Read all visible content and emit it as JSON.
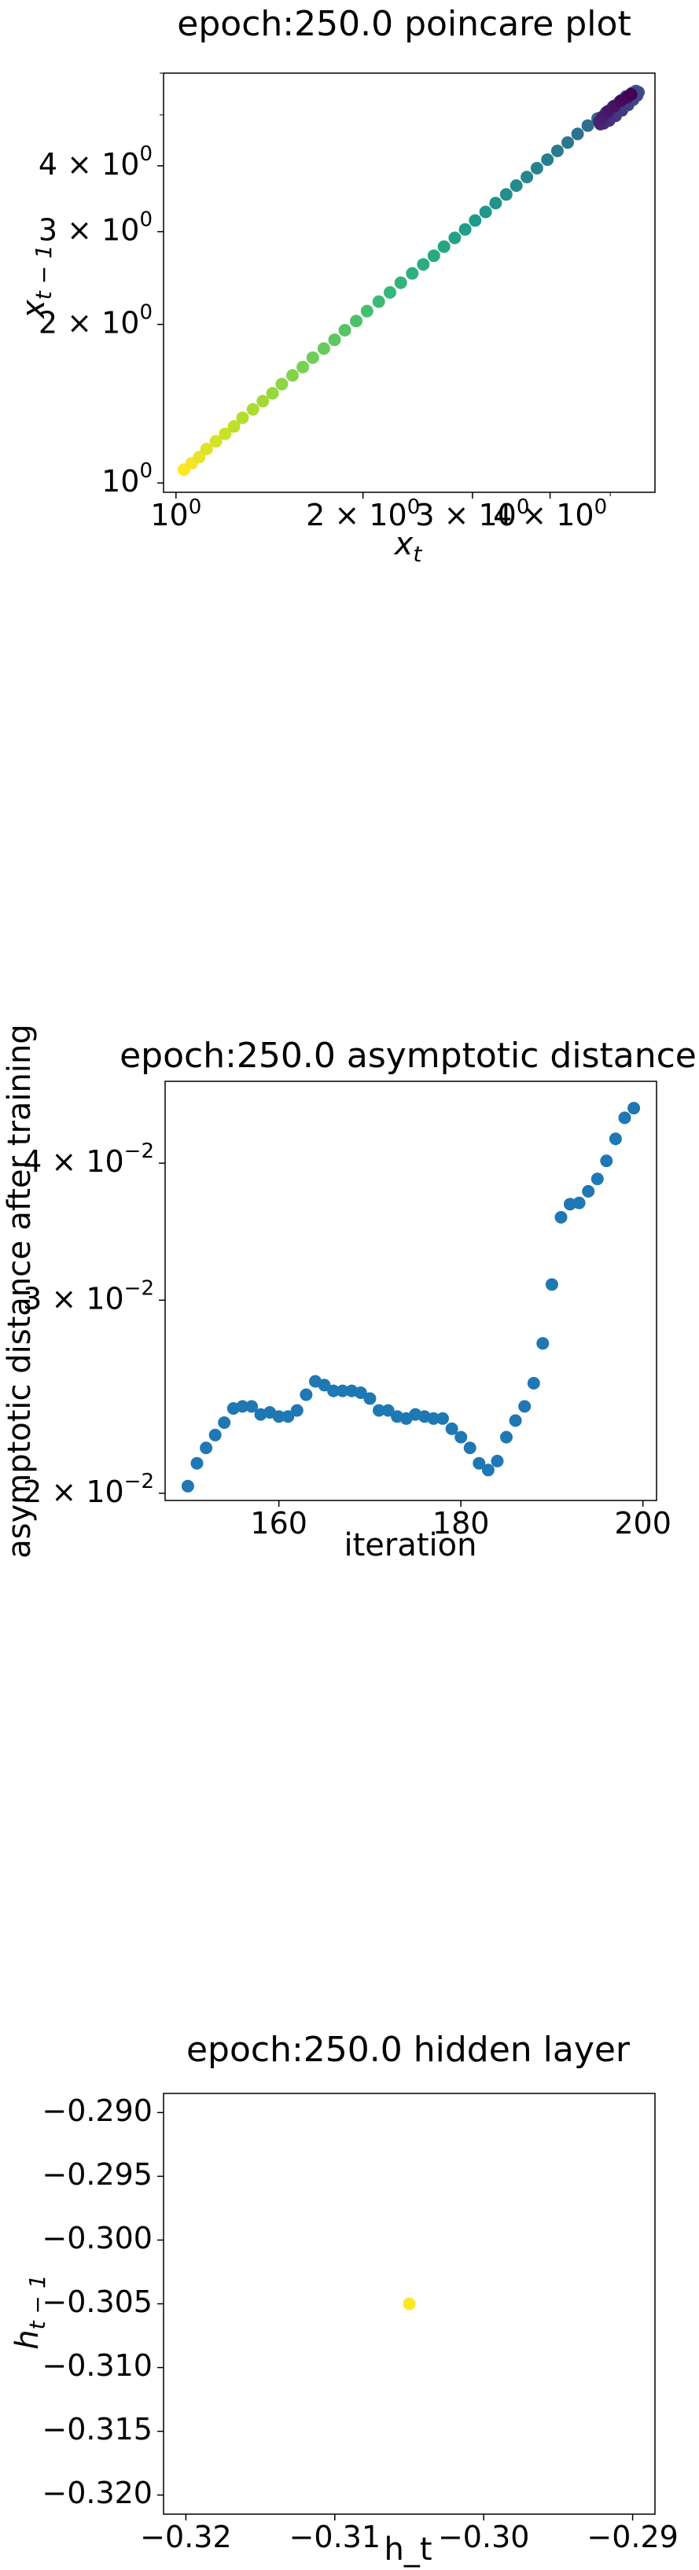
{
  "chart_data": [
    {
      "type": "scatter",
      "title": "epoch:250.0 poincare plot",
      "xlabel_main": "x",
      "xlabel_sub": "t",
      "ylabel_main": "x",
      "ylabel_sub": "t − 1",
      "xscale": "log",
      "yscale": "log",
      "xlim": [
        0.955,
        5.9
      ],
      "ylim": [
        0.96,
        6.0
      ],
      "grid": false,
      "colormap": "viridis",
      "color_start": "#fde725",
      "color_end": "#440154",
      "xticks": [
        {
          "value": 1,
          "base": "10",
          "exp": "0"
        },
        {
          "value": 2,
          "base": "2 × 10",
          "exp": "0"
        },
        {
          "value": 3,
          "base": "3 × 10",
          "exp": "0"
        },
        {
          "value": 4,
          "base": "4 × 10",
          "exp": "0"
        }
      ],
      "yticks": [
        {
          "value": 1,
          "base": "10",
          "exp": "0"
        },
        {
          "value": 2,
          "base": "2 × 10",
          "exp": "0"
        },
        {
          "value": 3,
          "base": "3 × 10",
          "exp": "0"
        },
        {
          "value": 4,
          "base": "4 × 10",
          "exp": "0"
        }
      ],
      "points": [
        [
          1.03,
          1.06
        ],
        [
          1.06,
          1.09
        ],
        [
          1.09,
          1.12
        ],
        [
          1.12,
          1.16
        ],
        [
          1.16,
          1.2
        ],
        [
          1.2,
          1.24
        ],
        [
          1.24,
          1.28
        ],
        [
          1.28,
          1.33
        ],
        [
          1.33,
          1.38
        ],
        [
          1.38,
          1.43
        ],
        [
          1.43,
          1.48
        ],
        [
          1.48,
          1.54
        ],
        [
          1.54,
          1.6
        ],
        [
          1.6,
          1.66
        ],
        [
          1.66,
          1.73
        ],
        [
          1.73,
          1.8
        ],
        [
          1.8,
          1.87
        ],
        [
          1.87,
          1.95
        ],
        [
          1.95,
          2.03
        ],
        [
          2.03,
          2.12
        ],
        [
          2.12,
          2.21
        ],
        [
          2.21,
          2.3
        ],
        [
          2.3,
          2.4
        ],
        [
          2.4,
          2.5
        ],
        [
          2.5,
          2.6
        ],
        [
          2.6,
          2.7
        ],
        [
          2.7,
          2.81
        ],
        [
          2.81,
          2.92
        ],
        [
          2.92,
          3.03
        ],
        [
          3.03,
          3.15
        ],
        [
          3.15,
          3.27
        ],
        [
          3.27,
          3.4
        ],
        [
          3.4,
          3.53
        ],
        [
          3.53,
          3.67
        ],
        [
          3.67,
          3.81
        ],
        [
          3.81,
          3.96
        ],
        [
          3.96,
          4.11
        ],
        [
          4.11,
          4.27
        ],
        [
          4.27,
          4.43
        ],
        [
          4.43,
          4.6
        ],
        [
          4.6,
          4.77
        ],
        [
          4.77,
          4.92
        ],
        [
          4.92,
          5.05
        ],
        [
          5.05,
          5.18
        ],
        [
          5.18,
          5.3
        ],
        [
          5.3,
          5.42
        ],
        [
          5.42,
          5.5
        ],
        [
          5.5,
          5.55
        ],
        [
          5.55,
          5.52
        ],
        [
          5.52,
          5.44
        ],
        [
          5.44,
          5.34
        ],
        [
          5.34,
          5.22
        ],
        [
          5.22,
          5.1
        ],
        [
          5.1,
          4.98
        ],
        [
          4.98,
          4.88
        ],
        [
          4.88,
          4.82
        ],
        [
          4.82,
          4.8
        ],
        [
          4.8,
          4.86
        ],
        [
          4.86,
          4.96
        ],
        [
          4.96,
          5.08
        ],
        [
          5.08,
          5.2
        ],
        [
          5.2,
          5.32
        ],
        [
          5.32,
          5.4
        ],
        [
          5.4,
          5.47
        ]
      ]
    },
    {
      "type": "scatter",
      "title": "epoch:250.0 asymptotic distance",
      "xlabel": "iteration",
      "ylabel": "asymptotic distance after training",
      "yscale": "log",
      "xlim": [
        147.5,
        201.5
      ],
      "ylim": [
        0.0197,
        0.0475
      ],
      "grid": false,
      "color": "#1f77b4",
      "xticks": [
        {
          "value": 160,
          "label": "160"
        },
        {
          "value": 180,
          "label": "180"
        },
        {
          "value": 200,
          "label": "200"
        }
      ],
      "yticks": [
        {
          "value": 0.02,
          "base": "2 × 10",
          "exp": "−2"
        },
        {
          "value": 0.03,
          "base": "3 × 10",
          "exp": "−2"
        },
        {
          "value": 0.04,
          "base": "4 × 10",
          "exp": "−2"
        }
      ],
      "x": [
        150,
        151,
        152,
        153,
        154,
        155,
        156,
        157,
        158,
        159,
        160,
        161,
        162,
        163,
        164,
        165,
        166,
        167,
        168,
        169,
        170,
        171,
        172,
        173,
        174,
        175,
        176,
        177,
        178,
        179,
        180,
        181,
        182,
        183,
        184,
        185,
        186,
        187,
        188,
        189,
        190,
        191,
        192,
        193,
        194,
        195,
        196,
        197,
        198,
        199
      ],
      "y": [
        0.0203,
        0.0213,
        0.022,
        0.0226,
        0.0232,
        0.0239,
        0.024,
        0.024,
        0.0236,
        0.0237,
        0.0235,
        0.0235,
        0.0238,
        0.0246,
        0.0253,
        0.0251,
        0.0248,
        0.0248,
        0.0248,
        0.0247,
        0.0244,
        0.0238,
        0.0238,
        0.0235,
        0.0234,
        0.0236,
        0.0235,
        0.0234,
        0.0234,
        0.0229,
        0.0225,
        0.022,
        0.0213,
        0.021,
        0.0214,
        0.0225,
        0.0233,
        0.024,
        0.0252,
        0.0274,
        0.031,
        0.0357,
        0.0367,
        0.0368,
        0.0377,
        0.0387,
        0.0402,
        0.0421,
        0.044,
        0.0449
      ]
    },
    {
      "type": "scatter",
      "title": "epoch:250.0 hidden layer",
      "xlabel": "h_t",
      "ylabel_main": "h",
      "ylabel_sub": "t − 1",
      "xlim": [
        -0.3215,
        -0.2885
      ],
      "ylim": [
        -0.3215,
        -0.2885
      ],
      "grid": false,
      "color": "#fde725",
      "xticks": [
        {
          "value": -0.32,
          "label": "−0.32"
        },
        {
          "value": -0.31,
          "label": "−0.31"
        },
        {
          "value": -0.3,
          "label": "−0.30"
        },
        {
          "value": -0.29,
          "label": "−0.29"
        }
      ],
      "yticks": [
        {
          "value": -0.29,
          "label": "−0.290"
        },
        {
          "value": -0.295,
          "label": "−0.295"
        },
        {
          "value": -0.3,
          "label": "−0.300"
        },
        {
          "value": -0.305,
          "label": "−0.305"
        },
        {
          "value": -0.31,
          "label": "−0.310"
        },
        {
          "value": -0.315,
          "label": "−0.315"
        },
        {
          "value": -0.32,
          "label": "−0.320"
        }
      ],
      "points": [
        [
          -0.305,
          -0.305
        ]
      ]
    }
  ]
}
